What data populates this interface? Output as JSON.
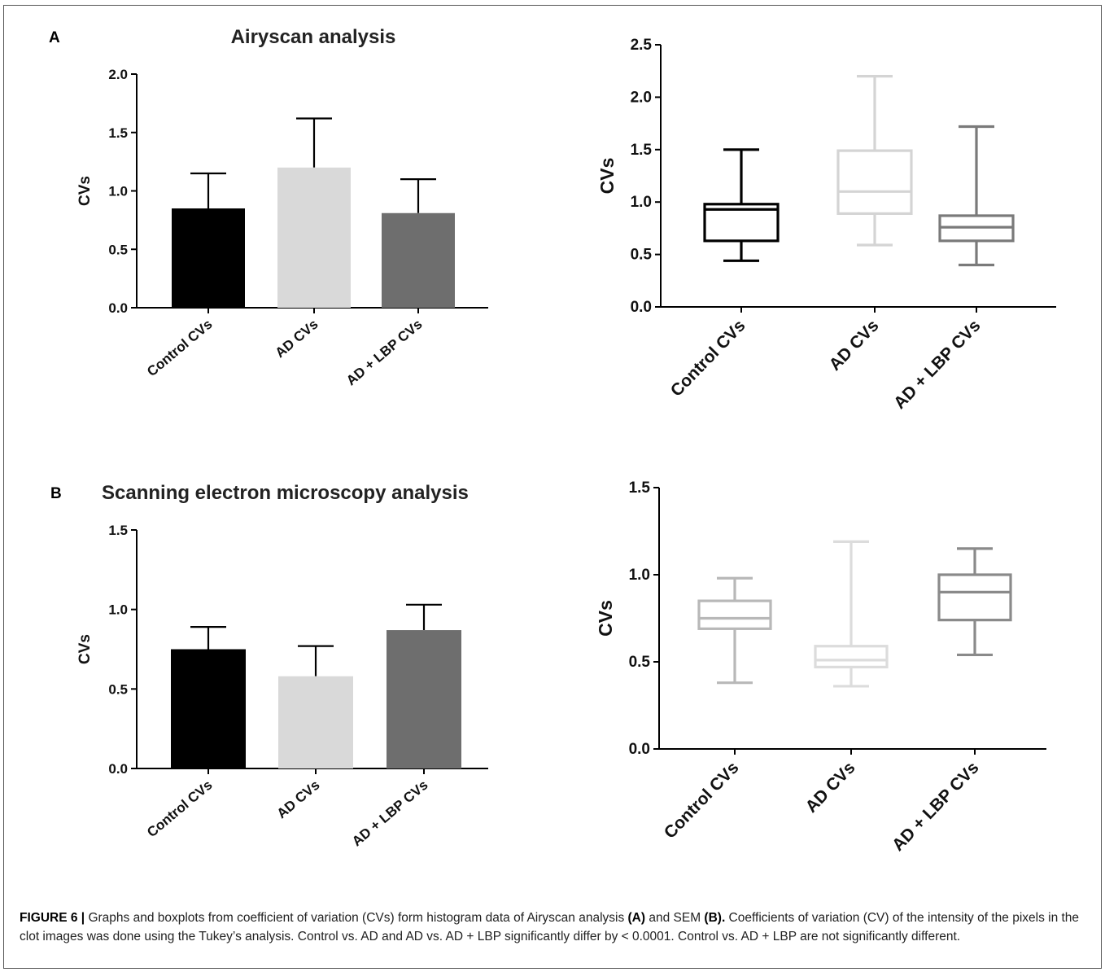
{
  "panels": [
    {
      "label": "A",
      "title": "Airyscan analysis"
    },
    {
      "label": "B",
      "title": "Scanning electron microscopy analysis"
    }
  ],
  "colors": {
    "black": "#000000",
    "light_gray": "#d9d9d9",
    "dark_gray": "#6e6e6e",
    "box_black": "#000000",
    "box_light": "#d4d4d4",
    "box_dark": "#7a7a7a",
    "box_mid": "#b8b8b8",
    "box_lighter": "#dcdcdc",
    "box_darker": "#8a8a8a"
  },
  "chart_data": [
    {
      "id": "A-bar",
      "type": "bar",
      "title": "Airyscan analysis",
      "ylabel": "CVs",
      "ylim": [
        0,
        2.0
      ],
      "yticks": [
        "0.0",
        "0.5",
        "1.0",
        "1.5",
        "2.0"
      ],
      "categories": [
        "Control CVs",
        "AD CVs",
        "AD + LBP CVs"
      ],
      "values": [
        0.85,
        1.2,
        0.81
      ],
      "errors": [
        0.3,
        0.42,
        0.29
      ],
      "bar_colors": [
        "#000000",
        "#d9d9d9",
        "#6e6e6e"
      ]
    },
    {
      "id": "A-box",
      "type": "box",
      "ylabel": "CVs",
      "ylim": [
        0,
        2.5
      ],
      "yticks": [
        "0.0",
        "0.5",
        "1.0",
        "1.5",
        "2.0",
        "2.5"
      ],
      "categories": [
        "Control CVs",
        "AD CVs",
        "AD + LBP CVs"
      ],
      "boxes": [
        {
          "min": 0.44,
          "q1": 0.63,
          "median": 0.93,
          "q3": 0.98,
          "max": 1.5
        },
        {
          "min": 0.59,
          "q1": 0.89,
          "median": 1.1,
          "q3": 1.49,
          "max": 2.2
        },
        {
          "min": 0.4,
          "q1": 0.63,
          "median": 0.76,
          "q3": 0.87,
          "max": 1.72
        }
      ],
      "box_colors": [
        "#000000",
        "#d4d4d4",
        "#7a7a7a"
      ]
    },
    {
      "id": "B-bar",
      "type": "bar",
      "title": "Scanning electron microscopy analysis",
      "ylabel": "CVs",
      "ylim": [
        0,
        1.5
      ],
      "yticks": [
        "0.0",
        "0.5",
        "1.0",
        "1.5"
      ],
      "categories": [
        "Control CVs",
        "AD CVs",
        "AD + LBP CVs"
      ],
      "values": [
        0.75,
        0.58,
        0.87
      ],
      "errors": [
        0.14,
        0.19,
        0.16
      ],
      "bar_colors": [
        "#000000",
        "#d9d9d9",
        "#6e6e6e"
      ]
    },
    {
      "id": "B-box",
      "type": "box",
      "ylabel": "CVs",
      "ylim": [
        0,
        1.5
      ],
      "yticks": [
        "0.0",
        "0.5",
        "1.0",
        "1.5"
      ],
      "categories": [
        "Control CVs",
        "AD CVs",
        "AD + LBP CVs"
      ],
      "boxes": [
        {
          "min": 0.38,
          "q1": 0.69,
          "median": 0.75,
          "q3": 0.85,
          "max": 0.98
        },
        {
          "min": 0.36,
          "q1": 0.47,
          "median": 0.51,
          "q3": 0.59,
          "max": 1.19
        },
        {
          "min": 0.54,
          "q1": 0.74,
          "median": 0.9,
          "q3": 1.0,
          "max": 1.15
        }
      ],
      "box_colors": [
        "#b8b8b8",
        "#dcdcdc",
        "#8a8a8a"
      ]
    }
  ],
  "caption": {
    "lead": "FIGURE 6 |",
    "part1": " Graphs and boxplots from coefficient of variation (CVs) form histogram data of Airyscan analysis ",
    "ref_a": "(A)",
    "part2": " and SEM ",
    "ref_b": "(B).",
    "part3": " Coefficients of variation (CV) of the intensity of the pixels in the clot images was done using the Tukey’s analysis. Control vs. AD and AD vs. AD + LBP significantly differ by < 0.0001. Control vs. AD + LBP are not significantly different."
  }
}
